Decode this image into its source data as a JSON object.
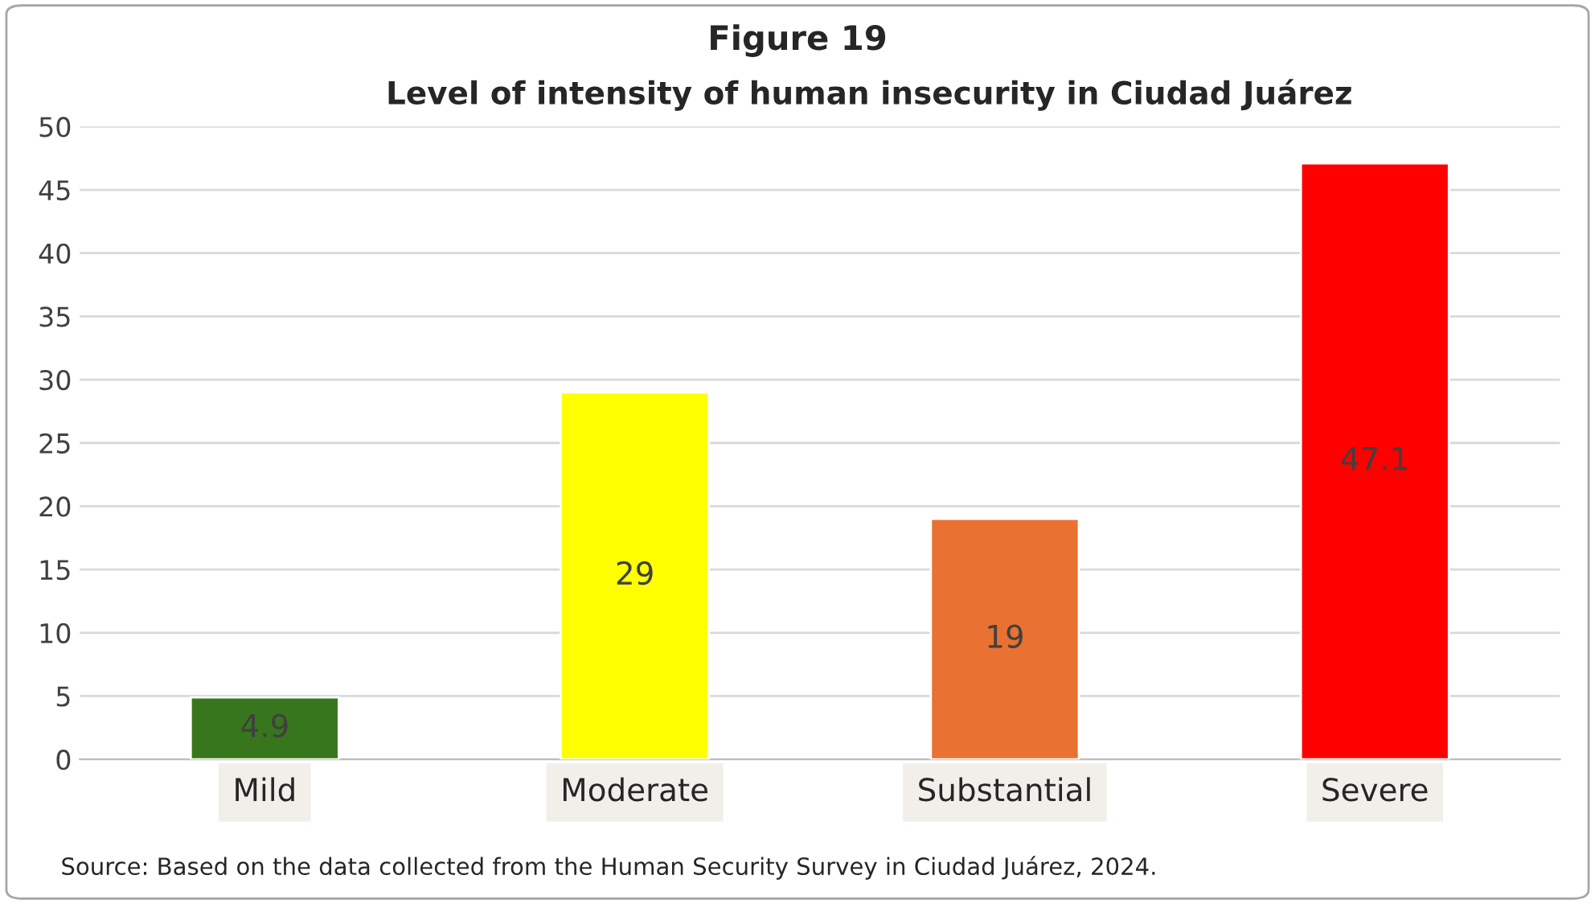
{
  "chart_data": {
    "type": "bar",
    "title": "Figure 19",
    "subtitle": "Level of intensity of human insecurity in Ciudad Juárez",
    "categories": [
      "Mild",
      "Moderate",
      "Substantial",
      "Severe"
    ],
    "values": [
      4.9,
      29,
      19,
      47.1
    ],
    "colors": [
      "#38761d",
      "#ffff00",
      "#e97132",
      "#ff0000"
    ],
    "ylim": [
      0,
      50
    ],
    "yticks": [
      0,
      5,
      10,
      15,
      20,
      25,
      30,
      35,
      40,
      45,
      50
    ],
    "grid": "y",
    "data_labels": true,
    "legend": false,
    "annotations": [
      "Source: Based on the data collected from the Human Security Survey in Ciudad Juárez, 2024."
    ]
  }
}
